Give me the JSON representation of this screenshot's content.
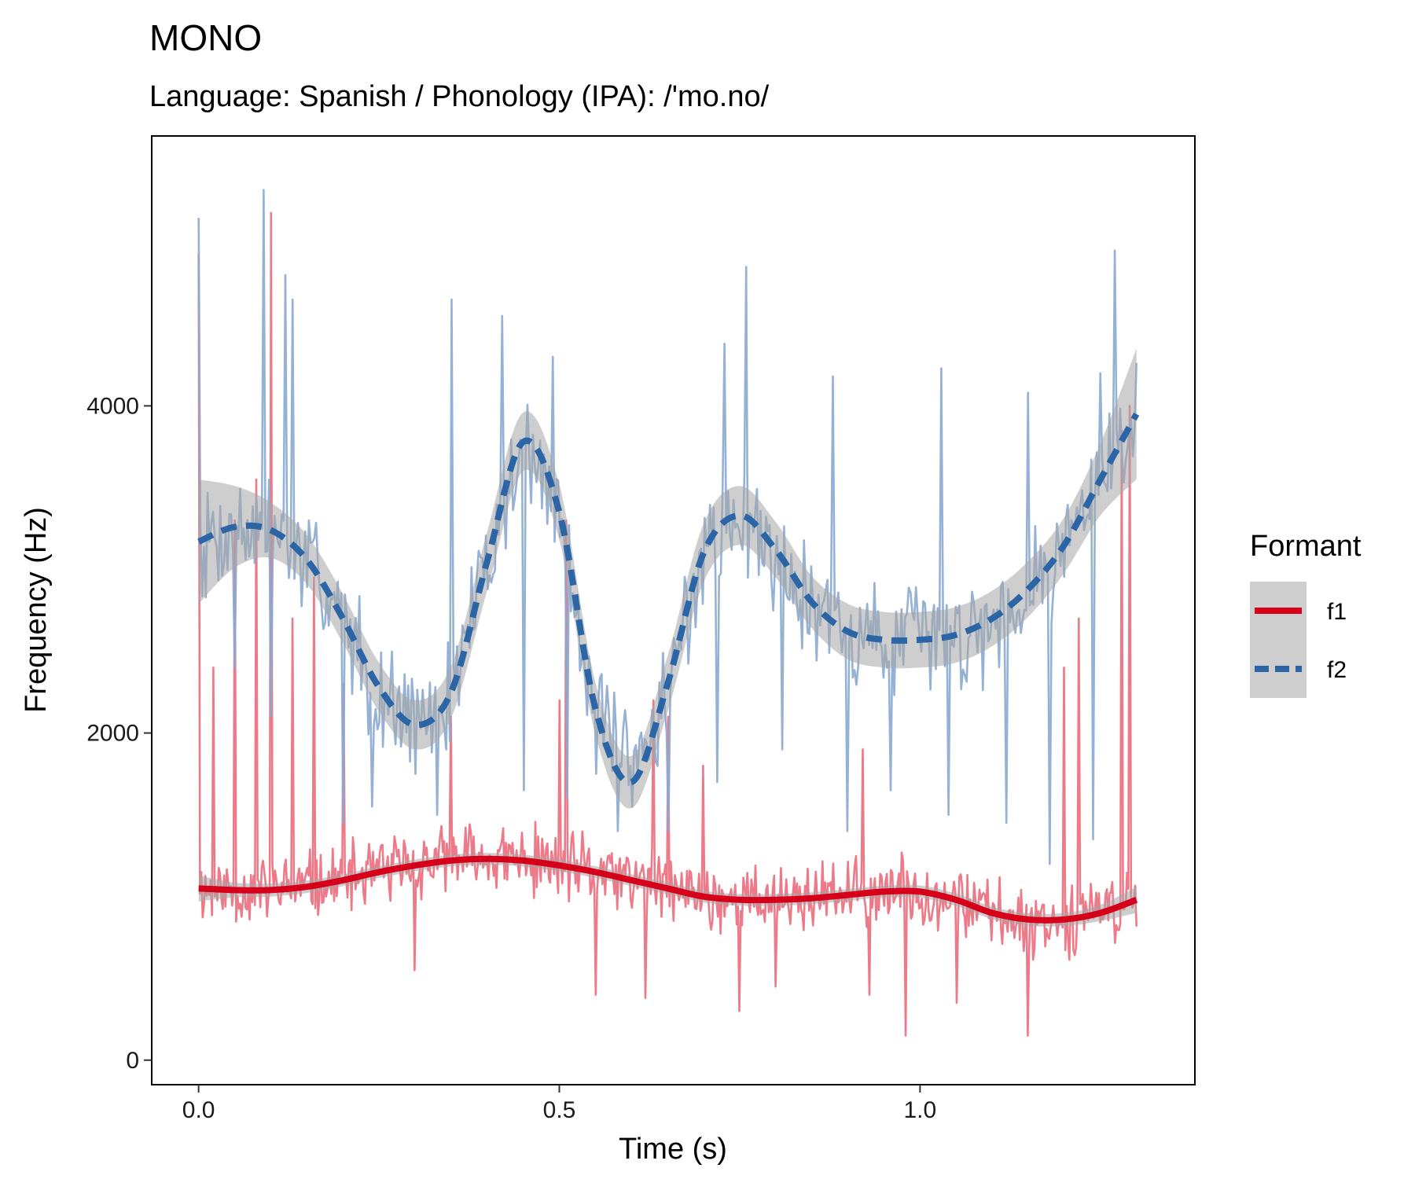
{
  "chart_data": {
    "type": "line",
    "title": "MONO",
    "subtitle": "Language: Spanish / Phonology (IPA): /'mo.no/",
    "xlabel": "Time (s)",
    "ylabel": "Frequency (Hz)",
    "xlim": [
      -0.065,
      1.381
    ],
    "ylim": [
      -150,
      5650
    ],
    "x_ticks": [
      0.0,
      0.5,
      1.0
    ],
    "x_tick_labels": [
      "0.0",
      "0.5",
      "1.0"
    ],
    "y_ticks": [
      0,
      2000,
      4000
    ],
    "y_tick_labels": [
      "0",
      "2000",
      "4000"
    ],
    "grid": false,
    "legend": {
      "title": "Formant",
      "position": "right",
      "entries": [
        {
          "label": "f1",
          "color": "#d7001a",
          "dash": "solid"
        },
        {
          "label": "f2",
          "color": "#2c65a6",
          "dash": "dashed"
        }
      ]
    },
    "colors": {
      "f1_raw": "#eb6f7f",
      "f1_smooth": "#d7001a",
      "f2_raw": "#89aad2",
      "f2_smooth": "#2c65a6",
      "ci_band": "#a6a6a6"
    },
    "series": [
      {
        "name": "f1",
        "kind": "smooth",
        "x": [
          0.0,
          0.05,
          0.1,
          0.15,
          0.2,
          0.25,
          0.3,
          0.35,
          0.4,
          0.45,
          0.5,
          0.55,
          0.6,
          0.65,
          0.7,
          0.75,
          0.8,
          0.85,
          0.9,
          0.95,
          1.0,
          1.05,
          1.1,
          1.15,
          1.2,
          1.25,
          1.3
        ],
        "y": [
          1050,
          1040,
          1040,
          1060,
          1100,
          1150,
          1190,
          1220,
          1230,
          1220,
          1190,
          1150,
          1100,
          1050,
          1000,
          980,
          980,
          990,
          1010,
          1030,
          1030,
          980,
          900,
          860,
          860,
          900,
          980
        ],
        "ci_half_width": [
          80,
          45,
          40,
          38,
          36,
          36,
          36,
          36,
          36,
          36,
          36,
          36,
          36,
          36,
          36,
          36,
          36,
          36,
          36,
          36,
          38,
          38,
          38,
          38,
          40,
          50,
          80
        ]
      },
      {
        "name": "f2",
        "kind": "smooth",
        "x": [
          0.0,
          0.05,
          0.1,
          0.15,
          0.2,
          0.25,
          0.3,
          0.35,
          0.4,
          0.45,
          0.5,
          0.55,
          0.6,
          0.65,
          0.7,
          0.75,
          0.8,
          0.85,
          0.9,
          0.95,
          1.0,
          1.05,
          1.1,
          1.15,
          1.2,
          1.25,
          1.3
        ],
        "y": [
          3170,
          3260,
          3240,
          3060,
          2700,
          2280,
          2050,
          2250,
          3050,
          3780,
          3350,
          2150,
          1700,
          2300,
          3100,
          3330,
          3120,
          2800,
          2620,
          2570,
          2570,
          2600,
          2700,
          2880,
          3150,
          3550,
          3950
        ],
        "ci_half_width": [
          380,
          250,
          170,
          150,
          150,
          150,
          150,
          160,
          180,
          180,
          170,
          160,
          160,
          170,
          180,
          180,
          170,
          160,
          170,
          170,
          170,
          170,
          170,
          170,
          170,
          220,
          400
        ]
      },
      {
        "name": "f1",
        "kind": "raw",
        "n_samples": 700,
        "spread": 260,
        "seed": 11,
        "spikes": [
          [
            0.0,
            4930
          ],
          [
            0.02,
            2400
          ],
          [
            0.05,
            3300
          ],
          [
            0.08,
            3550
          ],
          [
            0.1,
            5180
          ],
          [
            0.13,
            2700
          ],
          [
            0.16,
            2950
          ],
          [
            0.2,
            2300
          ],
          [
            0.3,
            2000
          ],
          [
            0.35,
            2100
          ],
          [
            0.5,
            2200
          ],
          [
            0.51,
            3300
          ],
          [
            0.55,
            2400
          ],
          [
            0.63,
            2200
          ],
          [
            0.65,
            2100
          ],
          [
            0.7,
            1800
          ],
          [
            0.8,
            1900
          ],
          [
            0.92,
            1900
          ],
          [
            1.05,
            1900
          ],
          [
            1.2,
            2400
          ],
          [
            1.22,
            2700
          ],
          [
            1.28,
            3850
          ],
          [
            1.29,
            4000
          ],
          [
            1.31,
            3550
          ],
          [
            0.3,
            550
          ],
          [
            0.55,
            400
          ],
          [
            0.62,
            380
          ],
          [
            0.75,
            300
          ],
          [
            0.8,
            450
          ],
          [
            0.93,
            400
          ],
          [
            0.98,
            150
          ],
          [
            1.05,
            350
          ],
          [
            1.15,
            150
          ]
        ]
      },
      {
        "name": "f2",
        "kind": "raw",
        "n_samples": 520,
        "spread": 420,
        "seed": 7,
        "spikes": [
          [
            0.0,
            5150
          ],
          [
            0.09,
            5320
          ],
          [
            0.12,
            4800
          ],
          [
            0.13,
            4650
          ],
          [
            0.35,
            4650
          ],
          [
            0.42,
            4550
          ],
          [
            0.49,
            4300
          ],
          [
            0.73,
            4380
          ],
          [
            0.76,
            4850
          ],
          [
            0.88,
            4180
          ],
          [
            1.03,
            4230
          ],
          [
            1.15,
            4080
          ],
          [
            1.25,
            4200
          ],
          [
            1.27,
            4950
          ],
          [
            0.05,
            2400
          ],
          [
            0.1,
            2100
          ],
          [
            0.2,
            1450
          ],
          [
            0.24,
            1550
          ],
          [
            0.3,
            1750
          ],
          [
            0.33,
            1500
          ],
          [
            0.45,
            1650
          ],
          [
            0.51,
            1600
          ],
          [
            0.55,
            1750
          ],
          [
            0.58,
            1400
          ],
          [
            0.6,
            1550
          ],
          [
            0.65,
            1400
          ],
          [
            0.72,
            1700
          ],
          [
            0.81,
            1900
          ],
          [
            0.9,
            1400
          ],
          [
            0.96,
            1650
          ],
          [
            1.04,
            1500
          ],
          [
            1.12,
            1450
          ],
          [
            1.18,
            1200
          ],
          [
            1.24,
            1350
          ]
        ]
      }
    ]
  }
}
